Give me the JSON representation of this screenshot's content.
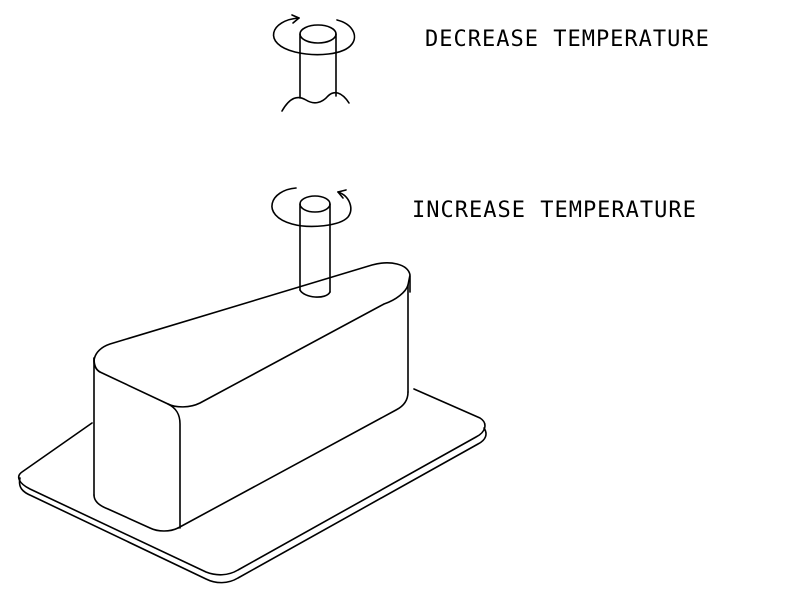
{
  "diagram": {
    "labels": {
      "decrease": "DECREASE TEMPERATURE",
      "increase": "INCREASE TEMPERATURE"
    },
    "icons": {
      "top_knob": "knob-turn-icon",
      "bottom_knob": "knob-turn-icon",
      "device": "thermostat-housing-icon"
    },
    "stroke_color": "#000000",
    "background_color": "#ffffff"
  }
}
